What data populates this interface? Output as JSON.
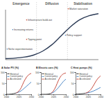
{
  "chart_data": [
    {
      "type": "line",
      "x": [
        0,
        1,
        2,
        3,
        4,
        5,
        6,
        7,
        8,
        9,
        10
      ],
      "values": [
        2,
        3,
        5,
        9,
        17,
        30,
        48,
        66,
        80,
        88,
        92
      ],
      "xlim": [
        0,
        10
      ],
      "ylim": [
        0,
        100
      ],
      "tick_labels": false,
      "color": "#2b3a55",
      "phases": [
        "Emergence",
        "Diffusion",
        "Stabilisation"
      ],
      "annotations": [
        "Niche experimentation",
        "Tipping point",
        "Increasing returns",
        "Infrastructure build-out",
        "Policy support",
        "Market saturation"
      ]
    },
    {
      "type": "line",
      "title": "A  Solar PV (%)",
      "x": [
        2000,
        2005,
        2010,
        2015,
        2020,
        2025,
        2030,
        2035,
        2040,
        2045,
        2050
      ],
      "series": [
        {
          "name": "Historical",
          "color": "#222222",
          "values": [
            0,
            0,
            1,
            3,
            6,
            null,
            null,
            null,
            null,
            null,
            null
          ]
        },
        {
          "name": "Current policy",
          "color": "#3a7bbf",
          "values": [
            null,
            null,
            null,
            null,
            6,
            10,
            16,
            25,
            35,
            45,
            55
          ]
        },
        {
          "name": "Accelerated",
          "color": "#c0392b",
          "values": [
            null,
            null,
            null,
            null,
            6,
            14,
            30,
            55,
            75,
            88,
            94
          ]
        }
      ],
      "xlim": [
        2000,
        2050
      ],
      "ylim": [
        0,
        100
      ],
      "xticks": [
        2000,
        2025,
        2050
      ],
      "yticks": [
        0,
        50,
        100
      ],
      "legend": "upper left"
    },
    {
      "type": "line",
      "title": "B  Electric cars (%)",
      "x": [
        2000,
        2005,
        2010,
        2015,
        2020,
        2025,
        2030,
        2035,
        2040,
        2045,
        2050
      ],
      "series": [
        {
          "name": "Historical",
          "color": "#222222",
          "values": [
            0,
            0,
            0,
            1,
            4,
            null,
            null,
            null,
            null,
            null,
            null
          ]
        },
        {
          "name": "Current policy",
          "color": "#3a7bbf",
          "values": [
            null,
            null,
            null,
            null,
            4,
            9,
            18,
            30,
            44,
            58,
            68
          ]
        },
        {
          "name": "Accelerated",
          "color": "#c0392b",
          "values": [
            null,
            null,
            null,
            null,
            4,
            15,
            35,
            62,
            82,
            92,
            96
          ]
        }
      ],
      "xlim": [
        2000,
        2050
      ],
      "ylim": [
        0,
        100
      ],
      "xticks": [
        2000,
        2025,
        2050
      ],
      "yticks": [
        0,
        50,
        100
      ],
      "legend": "upper left"
    },
    {
      "type": "line",
      "title": "C  Heat pumps (%)",
      "x": [
        2000,
        2005,
        2010,
        2015,
        2020,
        2025,
        2030,
        2035,
        2040,
        2045,
        2050
      ],
      "series": [
        {
          "name": "Historical",
          "color": "#222222",
          "values": [
            1,
            1,
            2,
            3,
            5,
            null,
            null,
            null,
            null,
            null,
            null
          ]
        },
        {
          "name": "Current policy",
          "color": "#3a7bbf",
          "values": [
            null,
            null,
            null,
            null,
            5,
            7,
            10,
            14,
            19,
            25,
            31
          ]
        },
        {
          "name": "Accelerated",
          "color": "#c0392b",
          "values": [
            null,
            null,
            null,
            null,
            5,
            10,
            20,
            36,
            56,
            72,
            83
          ]
        }
      ],
      "xlim": [
        2000,
        2050
      ],
      "ylim": [
        0,
        100
      ],
      "xticks": [
        2000,
        2025,
        2050
      ],
      "yticks": [
        0,
        50,
        100
      ],
      "legend": "upper left"
    }
  ]
}
